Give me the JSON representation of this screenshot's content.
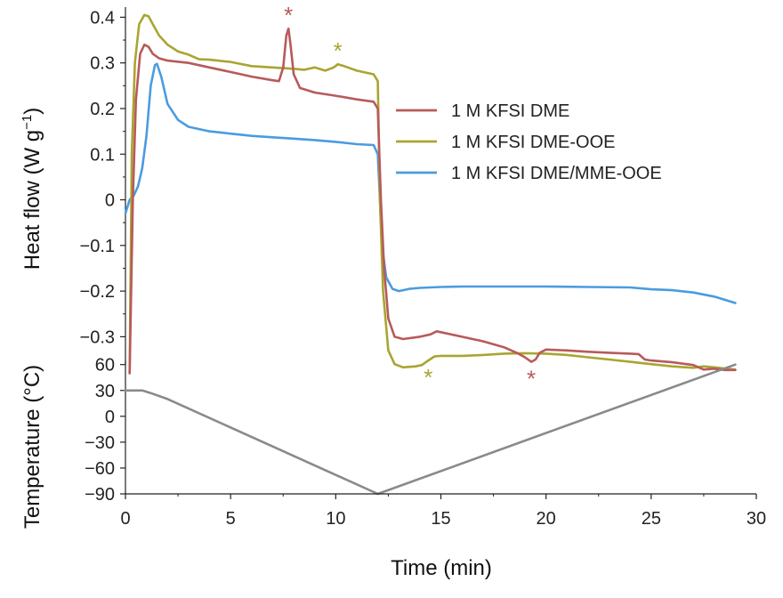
{
  "chart_data": {
    "type": "line",
    "x_axis": {
      "label": "Time (min)",
      "range": [
        0,
        30
      ],
      "ticks": [
        0,
        5,
        10,
        15,
        20,
        25,
        30
      ]
    },
    "top_panel": {
      "ylabel": "Heat flow (W g",
      "ylabel_sup": "−1",
      "ylabel_close": ")",
      "yrange": [
        -0.385,
        0.43
      ],
      "yticks": [
        0.4,
        0.3,
        0.2,
        0.1,
        0,
        -0.1,
        -0.2,
        -0.3
      ],
      "ytick_labels": [
        "0.4",
        "0.3",
        "0.2",
        "0.1",
        "0",
        "−0.1",
        "−0.2",
        "−0.3"
      ],
      "series": [
        {
          "name": "1 M KFSI DME",
          "color": "#b85a5a",
          "points": [
            [
              0.2,
              -0.38
            ],
            [
              0.35,
              0.0
            ],
            [
              0.5,
              0.22
            ],
            [
              0.7,
              0.32
            ],
            [
              0.9,
              0.34
            ],
            [
              1.1,
              0.335
            ],
            [
              1.3,
              0.32
            ],
            [
              1.6,
              0.31
            ],
            [
              2,
              0.305
            ],
            [
              3,
              0.3
            ],
            [
              4,
              0.29
            ],
            [
              5,
              0.28
            ],
            [
              6,
              0.27
            ],
            [
              7,
              0.262
            ],
            [
              7.3,
              0.26
            ],
            [
              7.5,
              0.29
            ],
            [
              7.65,
              0.36
            ],
            [
              7.75,
              0.375
            ],
            [
              7.85,
              0.34
            ],
            [
              8.0,
              0.275
            ],
            [
              8.3,
              0.245
            ],
            [
              9,
              0.235
            ],
            [
              10,
              0.228
            ],
            [
              11,
              0.22
            ],
            [
              11.8,
              0.215
            ],
            [
              12.0,
              0.2
            ],
            [
              12.15,
              0.0
            ],
            [
              12.3,
              -0.15
            ],
            [
              12.5,
              -0.26
            ],
            [
              12.8,
              -0.3
            ],
            [
              13.2,
              -0.305
            ],
            [
              14,
              -0.3
            ],
            [
              14.5,
              -0.295
            ],
            [
              14.8,
              -0.288
            ],
            [
              15,
              -0.29
            ],
            [
              16,
              -0.3
            ],
            [
              17,
              -0.31
            ],
            [
              18,
              -0.323
            ],
            [
              18.6,
              -0.335
            ],
            [
              19,
              -0.345
            ],
            [
              19.3,
              -0.355
            ],
            [
              19.5,
              -0.35
            ],
            [
              19.7,
              -0.335
            ],
            [
              20,
              -0.328
            ],
            [
              21,
              -0.33
            ],
            [
              22,
              -0.333
            ],
            [
              23,
              -0.335
            ],
            [
              24,
              -0.337
            ],
            [
              24.4,
              -0.338
            ],
            [
              24.7,
              -0.35
            ],
            [
              25,
              -0.352
            ],
            [
              26,
              -0.356
            ],
            [
              27,
              -0.362
            ],
            [
              27.5,
              -0.372
            ],
            [
              28,
              -0.37
            ],
            [
              28.5,
              -0.373
            ],
            [
              29,
              -0.373
            ]
          ]
        },
        {
          "name": "1 M KFSI DME-OOE",
          "color": "#a9a532",
          "points": [
            [
              0.2,
              -0.38
            ],
            [
              0.3,
              0.1
            ],
            [
              0.45,
              0.3
            ],
            [
              0.65,
              0.385
            ],
            [
              0.9,
              0.405
            ],
            [
              1.1,
              0.402
            ],
            [
              1.3,
              0.385
            ],
            [
              1.6,
              0.36
            ],
            [
              2,
              0.34
            ],
            [
              2.5,
              0.325
            ],
            [
              3,
              0.318
            ],
            [
              3.5,
              0.308
            ],
            [
              4,
              0.307
            ],
            [
              5,
              0.302
            ],
            [
              6,
              0.293
            ],
            [
              7,
              0.29
            ],
            [
              8,
              0.287
            ],
            [
              8.5,
              0.285
            ],
            [
              9,
              0.29
            ],
            [
              9.5,
              0.283
            ],
            [
              9.9,
              0.29
            ],
            [
              10.1,
              0.297
            ],
            [
              10.4,
              0.293
            ],
            [
              11,
              0.283
            ],
            [
              11.8,
              0.275
            ],
            [
              12.0,
              0.26
            ],
            [
              12.1,
              0.0
            ],
            [
              12.25,
              -0.2
            ],
            [
              12.5,
              -0.33
            ],
            [
              12.8,
              -0.36
            ],
            [
              13.2,
              -0.367
            ],
            [
              13.8,
              -0.365
            ],
            [
              14.1,
              -0.362
            ],
            [
              14.4,
              -0.352
            ],
            [
              14.7,
              -0.343
            ],
            [
              15,
              -0.342
            ],
            [
              16,
              -0.342
            ],
            [
              17,
              -0.34
            ],
            [
              18,
              -0.337
            ],
            [
              19,
              -0.336
            ],
            [
              20,
              -0.337
            ],
            [
              21,
              -0.34
            ],
            [
              22,
              -0.345
            ],
            [
              23,
              -0.35
            ],
            [
              24,
              -0.355
            ],
            [
              25,
              -0.36
            ],
            [
              26,
              -0.365
            ],
            [
              27,
              -0.368
            ],
            [
              27.5,
              -0.365
            ],
            [
              28,
              -0.367
            ],
            [
              29,
              -0.372
            ]
          ]
        },
        {
          "name": "1 M KFSI DME/MME-OOE",
          "color": "#4b9be0",
          "points": [
            [
              0.0,
              -0.03
            ],
            [
              0.2,
              0.0
            ],
            [
              0.4,
              0.01
            ],
            [
              0.6,
              0.03
            ],
            [
              0.8,
              0.07
            ],
            [
              1.0,
              0.14
            ],
            [
              1.2,
              0.25
            ],
            [
              1.4,
              0.295
            ],
            [
              1.5,
              0.298
            ],
            [
              1.7,
              0.27
            ],
            [
              2,
              0.21
            ],
            [
              2.5,
              0.175
            ],
            [
              3,
              0.16
            ],
            [
              4,
              0.15
            ],
            [
              5,
              0.145
            ],
            [
              6,
              0.14
            ],
            [
              7,
              0.137
            ],
            [
              8,
              0.134
            ],
            [
              9,
              0.131
            ],
            [
              10,
              0.127
            ],
            [
              11,
              0.122
            ],
            [
              11.8,
              0.12
            ],
            [
              12.0,
              0.1
            ],
            [
              12.1,
              0.0
            ],
            [
              12.2,
              -0.1
            ],
            [
              12.4,
              -0.17
            ],
            [
              12.7,
              -0.195
            ],
            [
              13,
              -0.2
            ],
            [
              13.5,
              -0.195
            ],
            [
              14,
              -0.193
            ],
            [
              15,
              -0.191
            ],
            [
              16,
              -0.19
            ],
            [
              18,
              -0.19
            ],
            [
              20,
              -0.19
            ],
            [
              22,
              -0.191
            ],
            [
              24,
              -0.192
            ],
            [
              25,
              -0.196
            ],
            [
              26,
              -0.198
            ],
            [
              27,
              -0.203
            ],
            [
              28,
              -0.212
            ],
            [
              29,
              -0.226
            ]
          ]
        }
      ]
    },
    "bottom_panel": {
      "ylabel": "Temperature (°C)",
      "yrange": [
        -90,
        70
      ],
      "yticks": [
        60,
        30,
        0,
        -30,
        -60,
        -90
      ],
      "ytick_labels": [
        "60",
        "30",
        "0",
        "−30",
        "−60",
        "−90"
      ],
      "series": [
        {
          "name": "Temperature",
          "color": "#8a8a8a",
          "points": [
            [
              0,
              30
            ],
            [
              0.8,
              30
            ],
            [
              1.2,
              27
            ],
            [
              2,
              20
            ],
            [
              12,
              -90
            ],
            [
              29,
              60
            ]
          ]
        }
      ]
    },
    "legend": {
      "placement": "right",
      "entries": [
        "1 M KFSI DME",
        "1 M KFSI DME-OOE",
        "1 M KFSI DME/MME-OOE"
      ]
    },
    "annotations": [
      {
        "text": "*",
        "series": "1 M KFSI DME",
        "x": 7.75,
        "y": 0.375,
        "position": "above",
        "color": "#b85a5a"
      },
      {
        "text": "*",
        "series": "1 M KFSI DME-OOE",
        "x": 10.1,
        "y": 0.297,
        "position": "above",
        "color": "#a9a532"
      },
      {
        "text": "*",
        "series": "1 M KFSI DME-OOE",
        "x": 14.4,
        "y": -0.352,
        "position": "below",
        "color": "#a9a532"
      },
      {
        "text": "*",
        "series": "1 M KFSI DME",
        "x": 19.3,
        "y": -0.355,
        "position": "below",
        "color": "#b85a5a"
      }
    ],
    "grid": false
  }
}
